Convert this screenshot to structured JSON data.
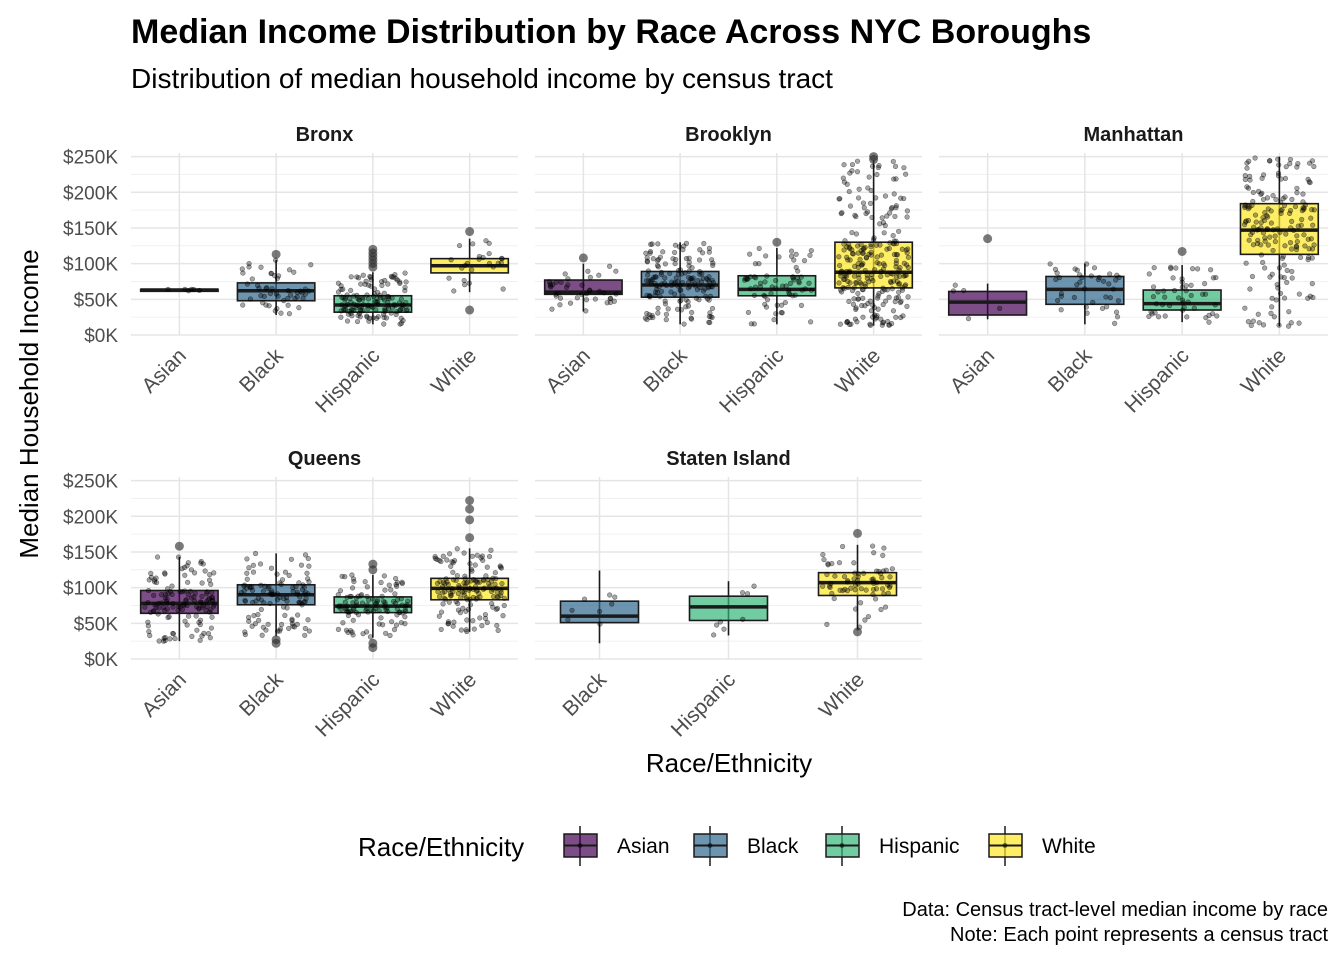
{
  "chart_data": {
    "type": "box",
    "title": "Median Income Distribution by Race Across NYC Boroughs",
    "subtitle": "Distribution of median household income by census tract",
    "xlabel": "Race/Ethnicity",
    "ylabel": "Median Household Income",
    "ylim": [
      0,
      255000
    ],
    "yticks": [
      0,
      50000,
      100000,
      150000,
      200000,
      250000
    ],
    "ytick_labels": [
      "$0K",
      "$50K",
      "$100K",
      "$150K",
      "$200K",
      "$250K"
    ],
    "grid": true,
    "legend": {
      "title": "Race/Ethnicity",
      "position": "bottom",
      "items": [
        "Asian",
        "Black",
        "Hispanic",
        "White"
      ]
    },
    "colors": {
      "Asian": "#440154",
      "Black": "#31688E",
      "Hispanic": "#35B779",
      "White": "#FDE725"
    },
    "caption": [
      "Data: Census tract-level median income by race",
      "Note: Each point represents a census tract"
    ],
    "panels": [
      {
        "name": "Bronx",
        "categories": [
          "Asian",
          "Black",
          "Hispanic",
          "White"
        ],
        "boxes": [
          {
            "q1": 62000,
            "median": 63000,
            "q3": 64000,
            "low": 62000,
            "high": 64000,
            "n": 6,
            "outliers": []
          },
          {
            "q1": 48000,
            "median": 62000,
            "q3": 73000,
            "low": 28000,
            "high": 105000,
            "n": 50,
            "outliers": [
              113000
            ]
          },
          {
            "q1": 32000,
            "median": 42000,
            "q3": 55000,
            "low": 15000,
            "high": 88000,
            "n": 140,
            "outliers": [
              95000,
              100000,
              105000,
              110000,
              115000,
              120000
            ]
          },
          {
            "q1": 87000,
            "median": 97000,
            "q3": 107000,
            "low": 60000,
            "high": 135000,
            "n": 25,
            "outliers": [
              35000,
              145000
            ]
          }
        ]
      },
      {
        "name": "Brooklyn",
        "categories": [
          "Asian",
          "Black",
          "Hispanic",
          "White"
        ],
        "boxes": [
          {
            "q1": 57000,
            "median": 60000,
            "q3": 77000,
            "low": 33000,
            "high": 100000,
            "n": 40,
            "outliers": [
              108000
            ]
          },
          {
            "q1": 53000,
            "median": 70000,
            "q3": 89000,
            "low": 15000,
            "high": 130000,
            "n": 160,
            "outliers": []
          },
          {
            "q1": 55000,
            "median": 64000,
            "q3": 83000,
            "low": 15000,
            "high": 122000,
            "n": 70,
            "outliers": [
              130000
            ]
          },
          {
            "q1": 66000,
            "median": 88000,
            "q3": 130000,
            "low": 13000,
            "high": 245000,
            "n": 260,
            "outliers": [
              250000,
              246000
            ]
          }
        ]
      },
      {
        "name": "Manhattan",
        "categories": [
          "Asian",
          "Black",
          "Hispanic",
          "White"
        ],
        "boxes": [
          {
            "q1": 28000,
            "median": 46000,
            "q3": 61000,
            "low": 22000,
            "high": 72000,
            "n": 5,
            "outliers": [
              135000
            ]
          },
          {
            "q1": 43000,
            "median": 64000,
            "q3": 82000,
            "low": 15000,
            "high": 100000,
            "n": 40,
            "outliers": []
          },
          {
            "q1": 35000,
            "median": 44000,
            "q3": 63000,
            "low": 18000,
            "high": 98000,
            "n": 50,
            "outliers": [
              117000
            ]
          },
          {
            "q1": 113000,
            "median": 147000,
            "q3": 184000,
            "low": 12000,
            "high": 250000,
            "n": 180,
            "outliers": []
          }
        ]
      },
      {
        "name": "Queens",
        "categories": [
          "Asian",
          "Black",
          "Hispanic",
          "White"
        ],
        "boxes": [
          {
            "q1": 64000,
            "median": 78000,
            "q3": 96000,
            "low": 25000,
            "high": 143000,
            "n": 130,
            "outliers": [
              158000
            ]
          },
          {
            "q1": 76000,
            "median": 90000,
            "q3": 104000,
            "low": 32000,
            "high": 148000,
            "n": 110,
            "outliers": [
              22000,
              27000
            ]
          },
          {
            "q1": 65000,
            "median": 74000,
            "q3": 87000,
            "low": 30000,
            "high": 118000,
            "n": 110,
            "outliers": [
              16000,
              22000,
              125000,
              133000
            ]
          },
          {
            "q1": 83000,
            "median": 99000,
            "q3": 113000,
            "low": 38000,
            "high": 155000,
            "n": 150,
            "outliers": [
              170000,
              195000,
              210000,
              222000
            ]
          }
        ]
      },
      {
        "name": "Staten Island",
        "categories": [
          "Black",
          "Hispanic",
          "White"
        ],
        "boxes": [
          {
            "q1": 51000,
            "median": 60000,
            "q3": 81000,
            "low": 22000,
            "high": 124000,
            "n": 8,
            "outliers": []
          },
          {
            "q1": 54000,
            "median": 73000,
            "q3": 88000,
            "low": 33000,
            "high": 109000,
            "n": 8,
            "outliers": []
          },
          {
            "q1": 89000,
            "median": 107000,
            "q3": 121000,
            "low": 40000,
            "high": 160000,
            "n": 70,
            "outliers": [
              176000,
              38000
            ]
          }
        ]
      }
    ]
  }
}
